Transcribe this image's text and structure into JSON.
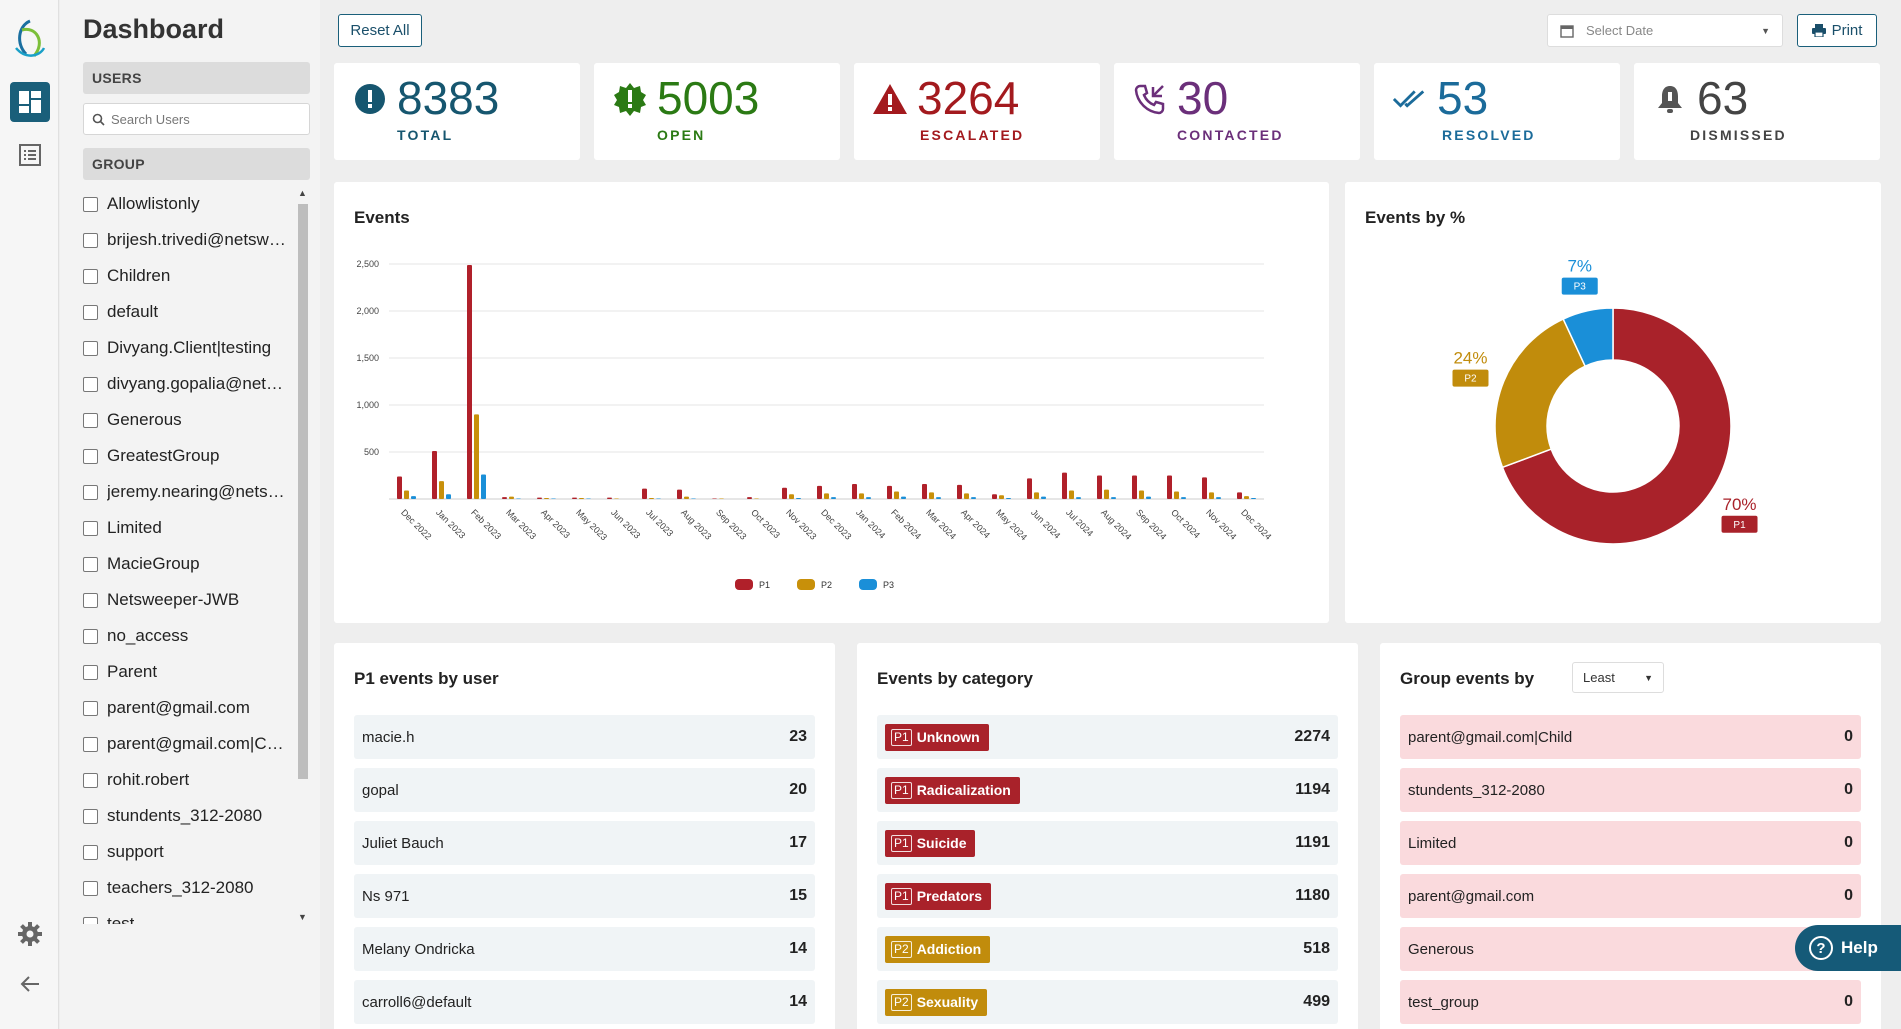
{
  "sidebar": {
    "title": "Dashboard",
    "users_header": "USERS",
    "search_placeholder": "Search Users",
    "group_header": "GROUP",
    "groups": [
      "Allowlistonly",
      "brijesh.trivedi@netsweeper.com",
      "Children",
      "default",
      "Divyang.Client|testing",
      "divyang.gopalia@netsweeper.com",
      "Generous",
      "GreatestGroup",
      "jeremy.nearing@netsweeper.com",
      "Limited",
      "MacieGroup",
      "Netsweeper-JWB",
      "no_access",
      "Parent",
      "parent@gmail.com",
      "parent@gmail.com|Child",
      "rohit.robert",
      "stundents_312-2080",
      "support",
      "teachers_312-2080",
      "test"
    ]
  },
  "toolbar": {
    "reset_label": "Reset All",
    "date_placeholder": "Select Date",
    "print_label": "Print"
  },
  "stats": [
    {
      "value": "8383",
      "label": "TOTAL",
      "color": "#16566f",
      "icon": "exclamation-circle-icon"
    },
    {
      "value": "5003",
      "label": "OPEN",
      "color": "#2b7a14",
      "icon": "badge-alert-icon"
    },
    {
      "value": "3264",
      "label": "ESCALATED",
      "color": "#a31a1e",
      "icon": "warning-triangle-icon"
    },
    {
      "value": "30",
      "label": "CONTACTED",
      "color": "#6b2f7a",
      "icon": "phone-callback-icon"
    },
    {
      "value": "53",
      "label": "RESOLVED",
      "color": "#1b6b9a",
      "icon": "double-check-icon"
    },
    {
      "value": "63",
      "label": "DISMISSED",
      "color": "#444444",
      "icon": "bell-off-icon"
    }
  ],
  "events_panel": {
    "title": "Events"
  },
  "percent_panel": {
    "title": "Events by %"
  },
  "chart_data": [
    {
      "type": "bar",
      "title": "Events",
      "categories": [
        "Dec 2022",
        "Jan 2023",
        "Feb 2023",
        "Mar 2023",
        "Apr 2023",
        "May 2023",
        "Jun 2023",
        "Jul 2023",
        "Aug 2023",
        "Sep 2023",
        "Oct 2023",
        "Nov 2023",
        "Dec 2023",
        "Jan 2024",
        "Feb 2024",
        "Mar 2024",
        "Apr 2024",
        "May 2024",
        "Jun 2024",
        "Jul 2024",
        "Aug 2024",
        "Sep 2024",
        "Oct 2024",
        "Nov 2024",
        "Dec 2024"
      ],
      "series": [
        {
          "name": "P1",
          "color": "#b0202a",
          "values": [
            240,
            510,
            2490,
            20,
            15,
            15,
            15,
            110,
            100,
            5,
            20,
            120,
            140,
            160,
            140,
            160,
            150,
            50,
            220,
            280,
            250,
            250,
            250,
            230,
            70
          ]
        },
        {
          "name": "P2",
          "color": "#c8900a",
          "values": [
            90,
            190,
            900,
            25,
            10,
            10,
            5,
            10,
            25,
            5,
            5,
            50,
            60,
            60,
            80,
            70,
            60,
            40,
            70,
            90,
            100,
            90,
            80,
            70,
            30
          ]
        },
        {
          "name": "P3",
          "color": "#1a8fd8",
          "values": [
            30,
            50,
            260,
            5,
            5,
            5,
            0,
            5,
            5,
            0,
            0,
            10,
            20,
            20,
            25,
            20,
            20,
            10,
            25,
            20,
            20,
            25,
            20,
            20,
            10
          ]
        }
      ],
      "yticks": [
        "2,500",
        "2,000",
        "1,500",
        "1,000",
        "500"
      ],
      "ylim": [
        0,
        2500
      ],
      "legend": "bottom"
    },
    {
      "type": "pie",
      "title": "Events by %",
      "slices": [
        {
          "label": "P1",
          "value": 70,
          "display": "70%",
          "color": "#a9222a"
        },
        {
          "label": "P2",
          "value": 24,
          "display": "24%",
          "color": "#c18c0c"
        },
        {
          "label": "P3",
          "value": 7,
          "display": "7%",
          "color": "#1a8fd8"
        }
      ]
    }
  ],
  "p1_users": {
    "title": "P1 events by user",
    "rows": [
      {
        "name": "macie.h",
        "count": "23"
      },
      {
        "name": "gopal",
        "count": "20"
      },
      {
        "name": "Juliet Bauch",
        "count": "17"
      },
      {
        "name": "Ns 971",
        "count": "15"
      },
      {
        "name": "Melany Ondricka",
        "count": "14"
      },
      {
        "name": "carroll6@default",
        "count": "14"
      }
    ]
  },
  "categories_panel": {
    "title": "Events by category",
    "rows": [
      {
        "priority": "P1",
        "name": "Unknown",
        "count": "2274",
        "color": "#a9222a"
      },
      {
        "priority": "P1",
        "name": "Radicalization",
        "count": "1194",
        "color": "#a9222a"
      },
      {
        "priority": "P1",
        "name": "Suicide",
        "count": "1191",
        "color": "#a9222a"
      },
      {
        "priority": "P1",
        "name": "Predators",
        "count": "1180",
        "color": "#a9222a"
      },
      {
        "priority": "P2",
        "name": "Addiction",
        "count": "518",
        "color": "#c18c0c"
      },
      {
        "priority": "P2",
        "name": "Sexuality",
        "count": "499",
        "color": "#c18c0c"
      }
    ]
  },
  "group_events": {
    "title": "Group events by",
    "sort_value": "Least",
    "rows": [
      {
        "name": "parent@gmail.com|Child",
        "count": "0"
      },
      {
        "name": "stundents_312-2080",
        "count": "0"
      },
      {
        "name": "Limited",
        "count": "0"
      },
      {
        "name": "parent@gmail.com",
        "count": "0"
      },
      {
        "name": "Generous",
        "count": ""
      },
      {
        "name": "test_group",
        "count": "0"
      }
    ]
  },
  "help": {
    "label": "Help"
  }
}
